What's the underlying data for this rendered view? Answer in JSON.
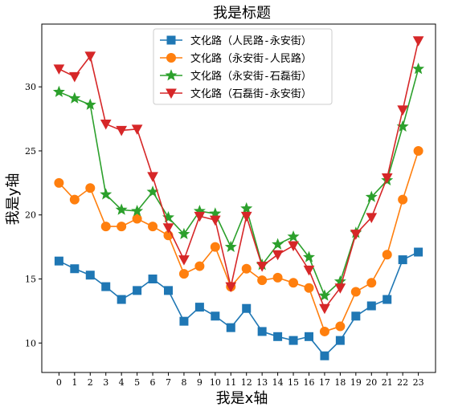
{
  "chart_data": {
    "type": "line",
    "title": "我是标题",
    "xlabel": "我是x轴",
    "ylabel": "我是y轴",
    "x": [
      0,
      1,
      2,
      3,
      4,
      5,
      6,
      7,
      8,
      9,
      10,
      11,
      12,
      13,
      14,
      15,
      16,
      17,
      18,
      19,
      20,
      21,
      22,
      23
    ],
    "xlim": [
      -1.1,
      24.1
    ],
    "ylim": [
      7.7,
      34.9
    ],
    "yticks": [
      10,
      15,
      20,
      25,
      30
    ],
    "grid": false,
    "legend_position": "top-center",
    "series": [
      {
        "name": "文化路（人民路-永安街）",
        "color": "#1f77b4",
        "marker": "square",
        "values": [
          16.4,
          15.8,
          15.3,
          14.4,
          13.4,
          14.1,
          15.0,
          14.1,
          11.7,
          12.8,
          12.1,
          11.2,
          12.7,
          10.9,
          10.5,
          10.2,
          10.5,
          9.0,
          10.2,
          12.1,
          12.9,
          13.4,
          16.5,
          17.1
        ]
      },
      {
        "name": "文化路（永安街-人民路）",
        "color": "#ff7f0e",
        "marker": "circle",
        "values": [
          22.5,
          21.2,
          22.1,
          19.1,
          19.1,
          19.7,
          19.1,
          18.4,
          15.4,
          16.0,
          17.5,
          14.4,
          15.8,
          14.9,
          15.1,
          14.7,
          14.3,
          10.9,
          11.3,
          14.0,
          14.7,
          16.9,
          21.2,
          25.0
        ]
      },
      {
        "name": "文化路（永安街-石磊街）",
        "color": "#2ca02c",
        "marker": "star",
        "values": [
          29.6,
          29.1,
          28.6,
          21.6,
          20.4,
          20.3,
          21.8,
          19.8,
          18.5,
          20.3,
          20.1,
          17.5,
          20.5,
          16.1,
          17.7,
          18.3,
          16.7,
          13.7,
          14.8,
          18.6,
          21.4,
          22.7,
          26.9,
          31.4
        ]
      },
      {
        "name": "文化路（石磊街-永安街）",
        "color": "#d62728",
        "marker": "triangle-down",
        "values": [
          31.4,
          30.8,
          32.4,
          27.1,
          26.6,
          26.7,
          23.0,
          19.0,
          16.5,
          19.9,
          19.6,
          14.4,
          19.9,
          16.0,
          16.9,
          17.6,
          15.7,
          12.7,
          14.3,
          18.5,
          19.8,
          22.9,
          28.2,
          33.6
        ]
      }
    ]
  }
}
